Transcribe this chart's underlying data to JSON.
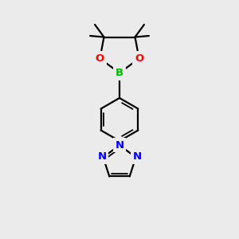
{
  "background_color": "#ebebeb",
  "bond_color": "#000000",
  "atom_colors": {
    "O": "#ff0000",
    "B": "#00bb00",
    "N": "#0000ff",
    "C": "#000000"
  },
  "figsize": [
    3.0,
    3.0
  ],
  "dpi": 100
}
